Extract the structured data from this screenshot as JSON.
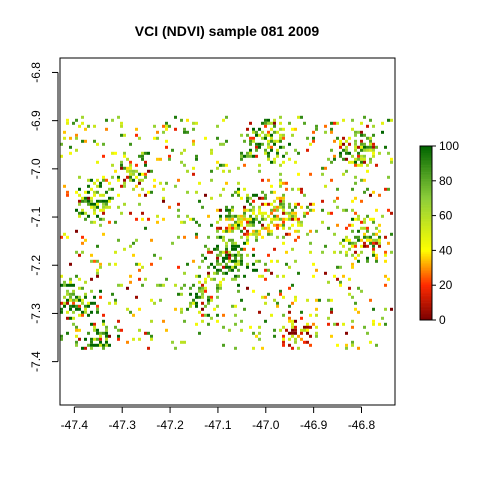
{
  "chart_data": {
    "type": "heatmap",
    "title": "VCI (NDVI) sample 081 2009",
    "xlabel": "",
    "ylabel": "",
    "xlim": [
      -47.43,
      -46.73
    ],
    "ylim": [
      -7.49,
      -6.77
    ],
    "x_ticks": [
      -47.4,
      -47.3,
      -47.2,
      -47.1,
      -47.0,
      -46.9,
      -46.8
    ],
    "x_tick_labels": [
      "-47.4",
      "-47.3",
      "-47.2",
      "-47.1",
      "-47.0",
      "-46.9",
      "-46.8"
    ],
    "y_ticks": [
      -6.8,
      -6.9,
      -7.0,
      -7.1,
      -7.2,
      -7.3,
      -7.4
    ],
    "y_tick_labels": [
      "-6.8",
      "-6.9",
      "-7.0",
      "-7.1",
      "-7.2",
      "-7.3",
      "-7.4"
    ],
    "raster_extent": {
      "x": [
        -47.43,
        -46.74
      ],
      "y": [
        -7.37,
        -6.89
      ]
    },
    "value_range": [
      0,
      100
    ],
    "colorbar": {
      "ticks": [
        0,
        20,
        40,
        60,
        80,
        100
      ],
      "tick_labels": [
        "0",
        "20",
        "40",
        "60",
        "80",
        "100"
      ],
      "colors": [
        "#7a0000",
        "#ff2a00",
        "#ffff00",
        "#8ccd3a",
        "#006400"
      ],
      "stops": [
        0,
        0.2,
        0.4,
        0.7,
        1
      ]
    },
    "clusters": [
      {
        "x": -47.36,
        "y": -7.06,
        "r": 0.04,
        "level": 75
      },
      {
        "x": -47.28,
        "y": -7.0,
        "r": 0.035,
        "level": 70
      },
      {
        "x": -47.08,
        "y": -7.18,
        "r": 0.045,
        "level": 85
      },
      {
        "x": -47.05,
        "y": -7.1,
        "r": 0.05,
        "level": 65
      },
      {
        "x": -46.97,
        "y": -7.09,
        "r": 0.05,
        "level": 55
      },
      {
        "x": -47.0,
        "y": -6.94,
        "r": 0.04,
        "level": 80
      },
      {
        "x": -46.8,
        "y": -6.95,
        "r": 0.04,
        "level": 70
      },
      {
        "x": -47.4,
        "y": -7.27,
        "r": 0.04,
        "level": 80
      },
      {
        "x": -47.13,
        "y": -7.26,
        "r": 0.035,
        "level": 75
      },
      {
        "x": -46.94,
        "y": -7.34,
        "r": 0.03,
        "level": 30
      },
      {
        "x": -47.35,
        "y": -7.35,
        "r": 0.03,
        "level": 85
      },
      {
        "x": -46.8,
        "y": -7.14,
        "r": 0.04,
        "level": 65
      }
    ]
  }
}
